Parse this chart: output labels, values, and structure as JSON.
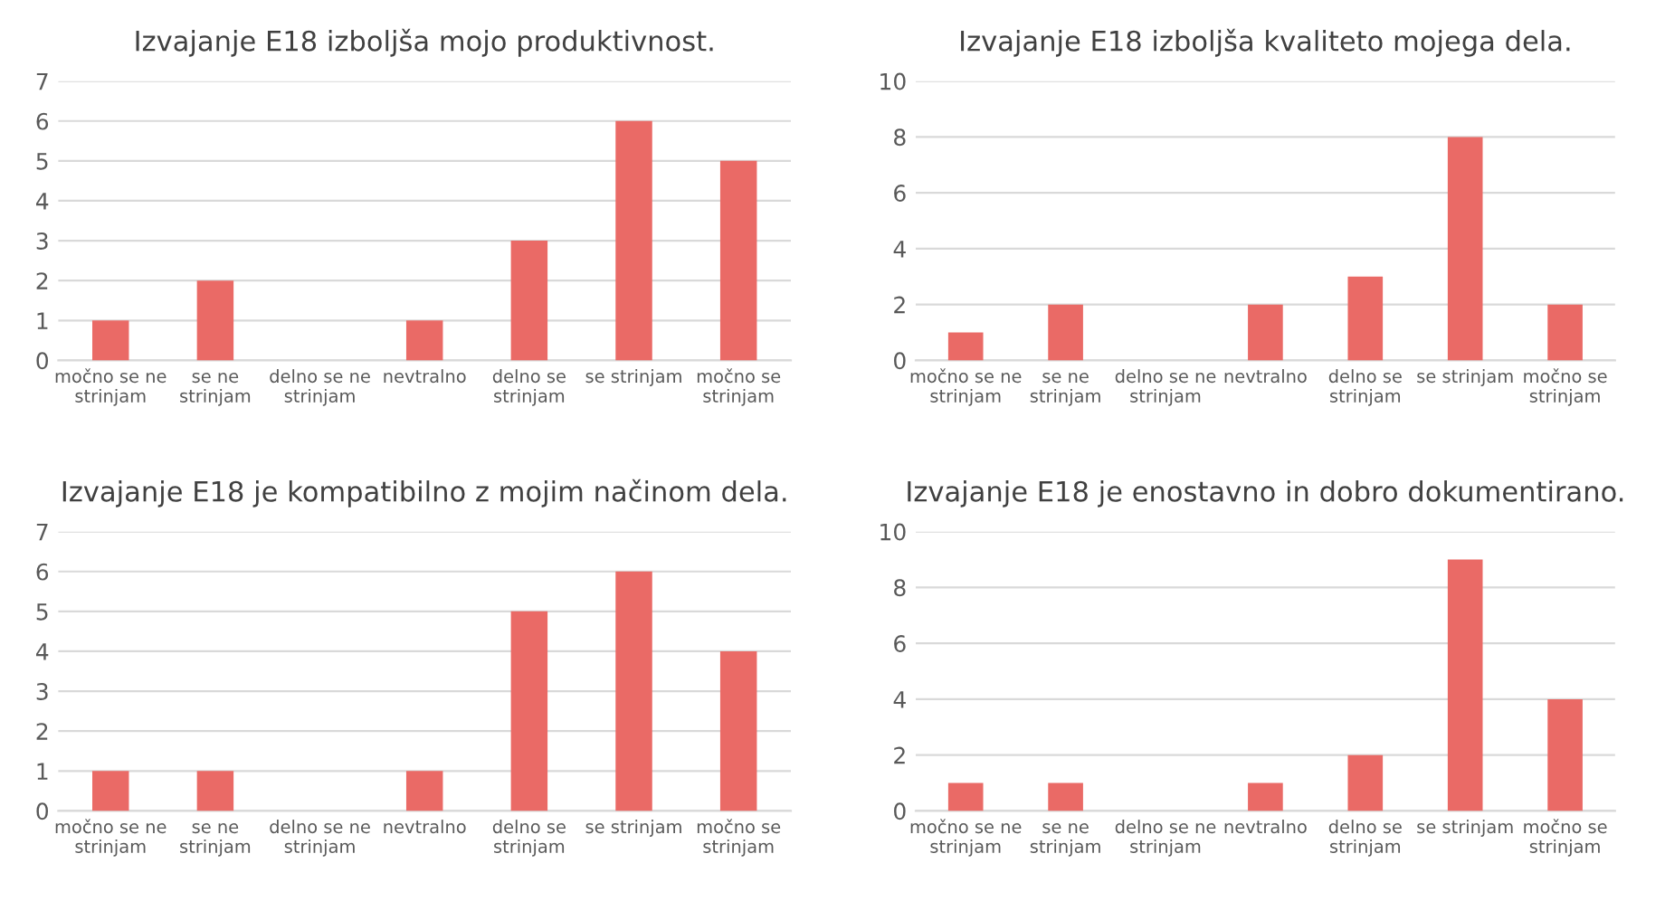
{
  "chart_data": [
    {
      "type": "bar",
      "title": "Izvajanje E18 izboljša mojo produktivnost.",
      "categories": [
        "močno se ne\nstrinjam",
        "se ne\nstrinjam",
        "delno se ne\nstrinjam",
        "nevtralno",
        "delno se\nstrinjam",
        "se strinjam",
        "močno se\nstrinjam"
      ],
      "values": [
        1,
        2,
        0,
        1,
        3,
        6,
        5
      ],
      "color": "#ea6a66",
      "ylim": [
        0,
        7
      ],
      "yticks": [
        0,
        1,
        2,
        3,
        4,
        5,
        6,
        7
      ],
      "grid": "y",
      "legend": false
    },
    {
      "type": "bar",
      "title": "Izvajanje E18 izboljša kvaliteto mojega dela.",
      "categories": [
        "močno se ne\nstrinjam",
        "se ne\nstrinjam",
        "delno se ne\nstrinjam",
        "nevtralno",
        "delno se\nstrinjam",
        "se strinjam",
        "močno se\nstrinjam"
      ],
      "values": [
        1,
        2,
        0,
        2,
        3,
        8,
        2
      ],
      "color": "#ea6a66",
      "ylim": [
        0,
        10
      ],
      "yticks": [
        0,
        2,
        4,
        6,
        8,
        10
      ],
      "grid": "y",
      "legend": false
    },
    {
      "type": "bar",
      "title": "Izvajanje E18 je kompatibilno z mojim načinom dela.",
      "categories": [
        "močno se ne\nstrinjam",
        "se ne\nstrinjam",
        "delno se ne\nstrinjam",
        "nevtralno",
        "delno se\nstrinjam",
        "se strinjam",
        "močno se\nstrinjam"
      ],
      "values": [
        1,
        1,
        0,
        1,
        5,
        6,
        4
      ],
      "color": "#ea6a66",
      "ylim": [
        0,
        7
      ],
      "yticks": [
        0,
        1,
        2,
        3,
        4,
        5,
        6,
        7
      ],
      "grid": "y",
      "legend": false
    },
    {
      "type": "bar",
      "title": "Izvajanje E18 je enostavno in dobro dokumentirano.",
      "categories": [
        "močno se ne\nstrinjam",
        "se ne\nstrinjam",
        "delno se ne\nstrinjam",
        "nevtralno",
        "delno se\nstrinjam",
        "se strinjam",
        "močno se\nstrinjam"
      ],
      "values": [
        1,
        1,
        0,
        1,
        2,
        9,
        4
      ],
      "color": "#ea6a66",
      "ylim": [
        0,
        10
      ],
      "yticks": [
        0,
        2,
        4,
        6,
        8,
        10
      ],
      "grid": "y",
      "legend": false
    }
  ]
}
